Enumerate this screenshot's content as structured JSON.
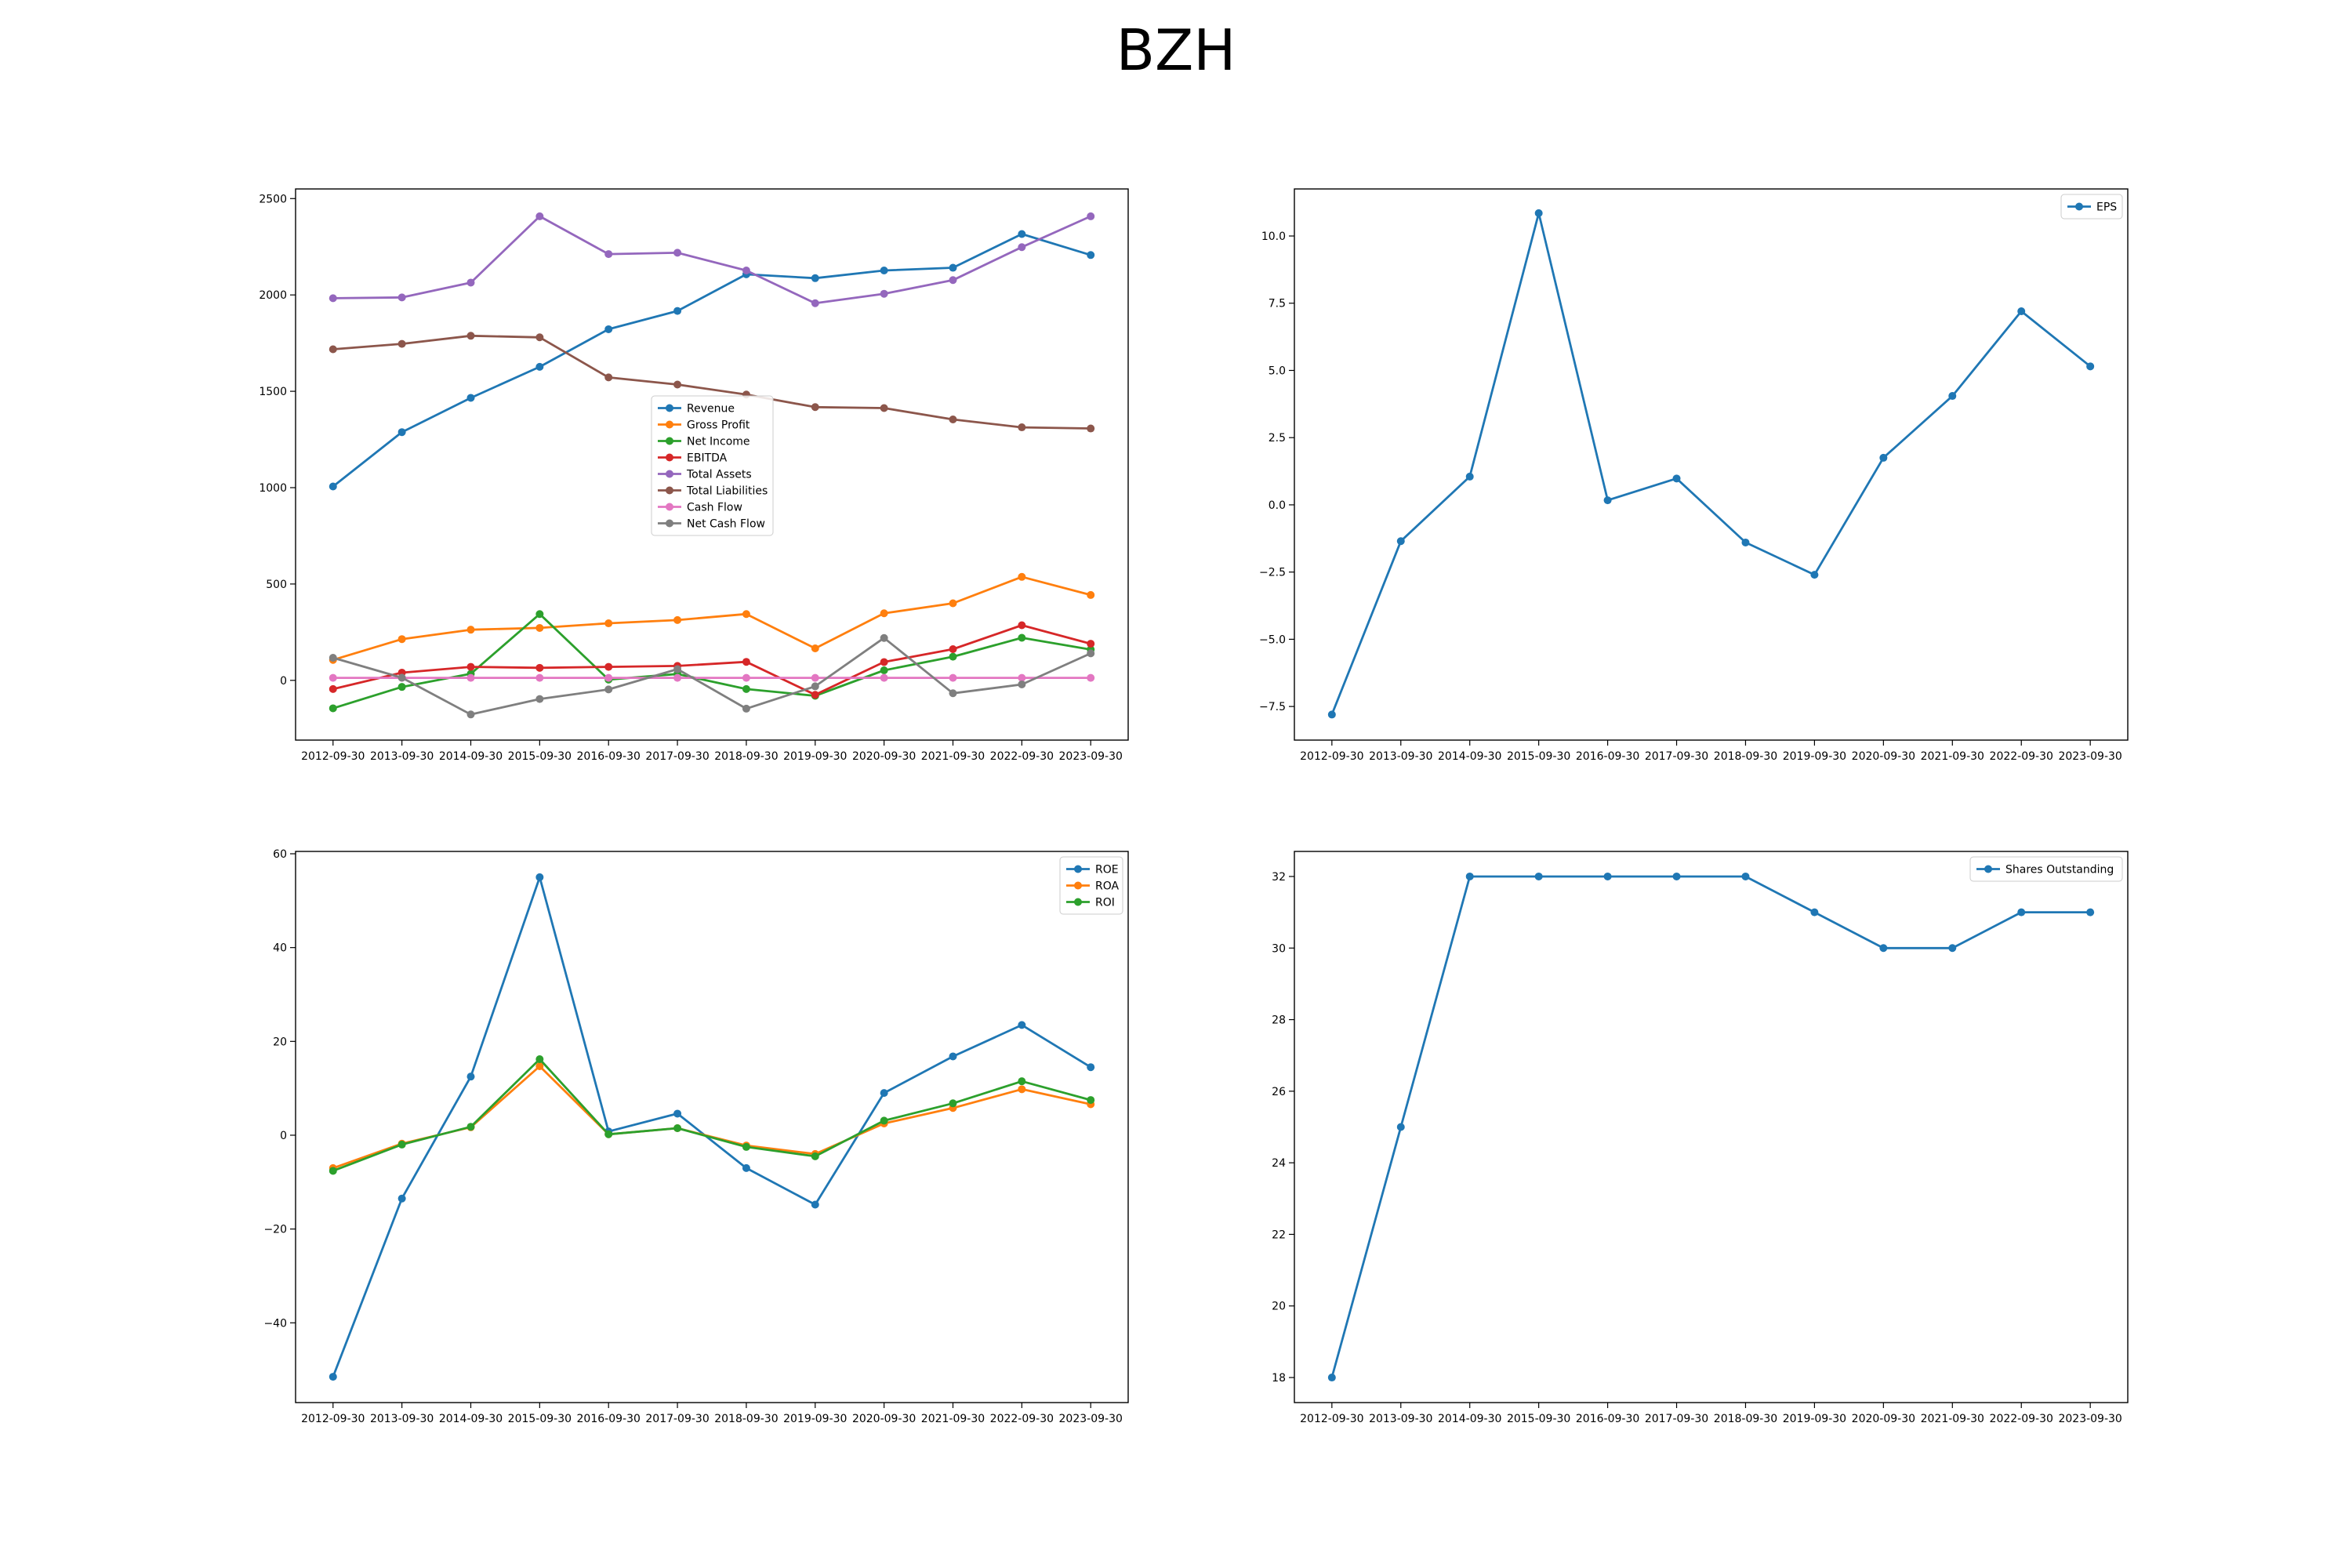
{
  "title": "BZH",
  "chart_data": [
    {
      "type": "line",
      "x": [
        "2012-09-30",
        "2013-09-30",
        "2014-09-30",
        "2015-09-30",
        "2016-09-30",
        "2017-09-30",
        "2018-09-30",
        "2019-09-30",
        "2020-09-30",
        "2021-09-30",
        "2022-09-30",
        "2023-09-30"
      ],
      "ylim": [
        -310,
        2550
      ],
      "yticks": [
        0,
        500,
        1000,
        1500,
        2000,
        2500
      ],
      "ytick_labels": [
        "0",
        "500",
        "1000",
        "1500",
        "2000",
        "2500"
      ],
      "legend": "center",
      "series": [
        {
          "name": "Revenue",
          "color": "#1f77b4",
          "values": [
            1006,
            1288,
            1466,
            1627,
            1822,
            1917,
            2107,
            2087,
            2127,
            2141,
            2316,
            2207
          ]
        },
        {
          "name": "Gross Profit",
          "color": "#ff7f0e",
          "values": [
            106,
            214,
            263,
            272,
            296,
            313,
            344,
            166,
            348,
            400,
            537,
            443
          ]
        },
        {
          "name": "Net Income",
          "color": "#2ca02c",
          "values": [
            -145,
            -34,
            34,
            344,
            4,
            33,
            -45,
            -80,
            52,
            123,
            221,
            160
          ]
        },
        {
          "name": "EBITDA",
          "color": "#d62728",
          "values": [
            -45,
            40,
            70,
            65,
            70,
            75,
            96,
            -75,
            95,
            162,
            286,
            190
          ]
        },
        {
          "name": "Total Assets",
          "color": "#9467bd",
          "values": [
            1983,
            1987,
            2064,
            2408,
            2212,
            2219,
            2127,
            1957,
            2006,
            2077,
            2248,
            2408
          ]
        },
        {
          "name": "Total Liabilities",
          "color": "#8c564b",
          "values": [
            1718,
            1746,
            1788,
            1780,
            1572,
            1535,
            1483,
            1418,
            1413,
            1354,
            1313,
            1307
          ]
        },
        {
          "name": "Cash Flow",
          "color": "#e377c2",
          "values": [
            13,
            13,
            13,
            13,
            13,
            13,
            13,
            13,
            13,
            13,
            13,
            13
          ]
        },
        {
          "name": "Net Cash Flow",
          "color": "#7f7f7f",
          "values": [
            117,
            14,
            -177,
            -97,
            -47,
            58,
            -147,
            -31,
            220,
            -67,
            -21,
            140
          ]
        }
      ]
    },
    {
      "type": "line",
      "x": [
        "2012-09-30",
        "2013-09-30",
        "2014-09-30",
        "2015-09-30",
        "2016-09-30",
        "2017-09-30",
        "2018-09-30",
        "2019-09-30",
        "2020-09-30",
        "2021-09-30",
        "2022-09-30",
        "2023-09-30"
      ],
      "ylim": [
        -8.75,
        11.75
      ],
      "yticks": [
        -7.5,
        -5.0,
        -2.5,
        0.0,
        2.5,
        5.0,
        7.5,
        10.0
      ],
      "ytick_labels": [
        "−7.5",
        "−5.0",
        "−2.5",
        "0.0",
        "2.5",
        "5.0",
        "7.5",
        "10.0"
      ],
      "legend": "upper right",
      "series": [
        {
          "name": "EPS",
          "color": "#1f77b4",
          "values": [
            -7.8,
            -1.35,
            1.05,
            10.85,
            0.17,
            0.98,
            -1.4,
            -2.6,
            1.75,
            4.05,
            7.2,
            5.15
          ]
        }
      ]
    },
    {
      "type": "line",
      "x": [
        "2012-09-30",
        "2013-09-30",
        "2014-09-30",
        "2015-09-30",
        "2016-09-30",
        "2017-09-30",
        "2018-09-30",
        "2019-09-30",
        "2020-09-30",
        "2021-09-30",
        "2022-09-30",
        "2023-09-30"
      ],
      "ylim": [
        -57,
        60.5
      ],
      "yticks": [
        -40,
        -20,
        0,
        20,
        40,
        60
      ],
      "ytick_labels": [
        "−40",
        "−20",
        "0",
        "20",
        "40",
        "60"
      ],
      "legend": "upper right",
      "series": [
        {
          "name": "ROE",
          "color": "#1f77b4",
          "values": [
            -51.5,
            -13.5,
            12.5,
            55,
            0.8,
            4.6,
            -7,
            -14.8,
            9,
            16.8,
            23.5,
            14.5
          ]
        },
        {
          "name": "ROA",
          "color": "#ff7f0e",
          "values": [
            -7,
            -1.8,
            1.7,
            14.7,
            0.2,
            1.5,
            -2.2,
            -4,
            2.5,
            5.8,
            9.8,
            6.6
          ]
        },
        {
          "name": "ROI",
          "color": "#2ca02c",
          "values": [
            -7.6,
            -2,
            1.8,
            16.2,
            0.2,
            1.5,
            -2.5,
            -4.5,
            3.1,
            6.8,
            11.5,
            7.5
          ]
        }
      ]
    },
    {
      "type": "line",
      "x": [
        "2012-09-30",
        "2013-09-30",
        "2014-09-30",
        "2015-09-30",
        "2016-09-30",
        "2017-09-30",
        "2018-09-30",
        "2019-09-30",
        "2020-09-30",
        "2021-09-30",
        "2022-09-30",
        "2023-09-30"
      ],
      "ylim": [
        17.3,
        32.7
      ],
      "yticks": [
        18,
        20,
        22,
        24,
        26,
        28,
        30,
        32
      ],
      "ytick_labels": [
        "18",
        "20",
        "22",
        "24",
        "26",
        "28",
        "30",
        "32"
      ],
      "legend": "upper right",
      "series": [
        {
          "name": "Shares Outstanding",
          "color": "#1f77b4",
          "values": [
            18,
            25,
            32,
            32,
            32,
            32,
            32,
            31,
            30,
            30,
            31,
            31
          ]
        }
      ]
    }
  ]
}
